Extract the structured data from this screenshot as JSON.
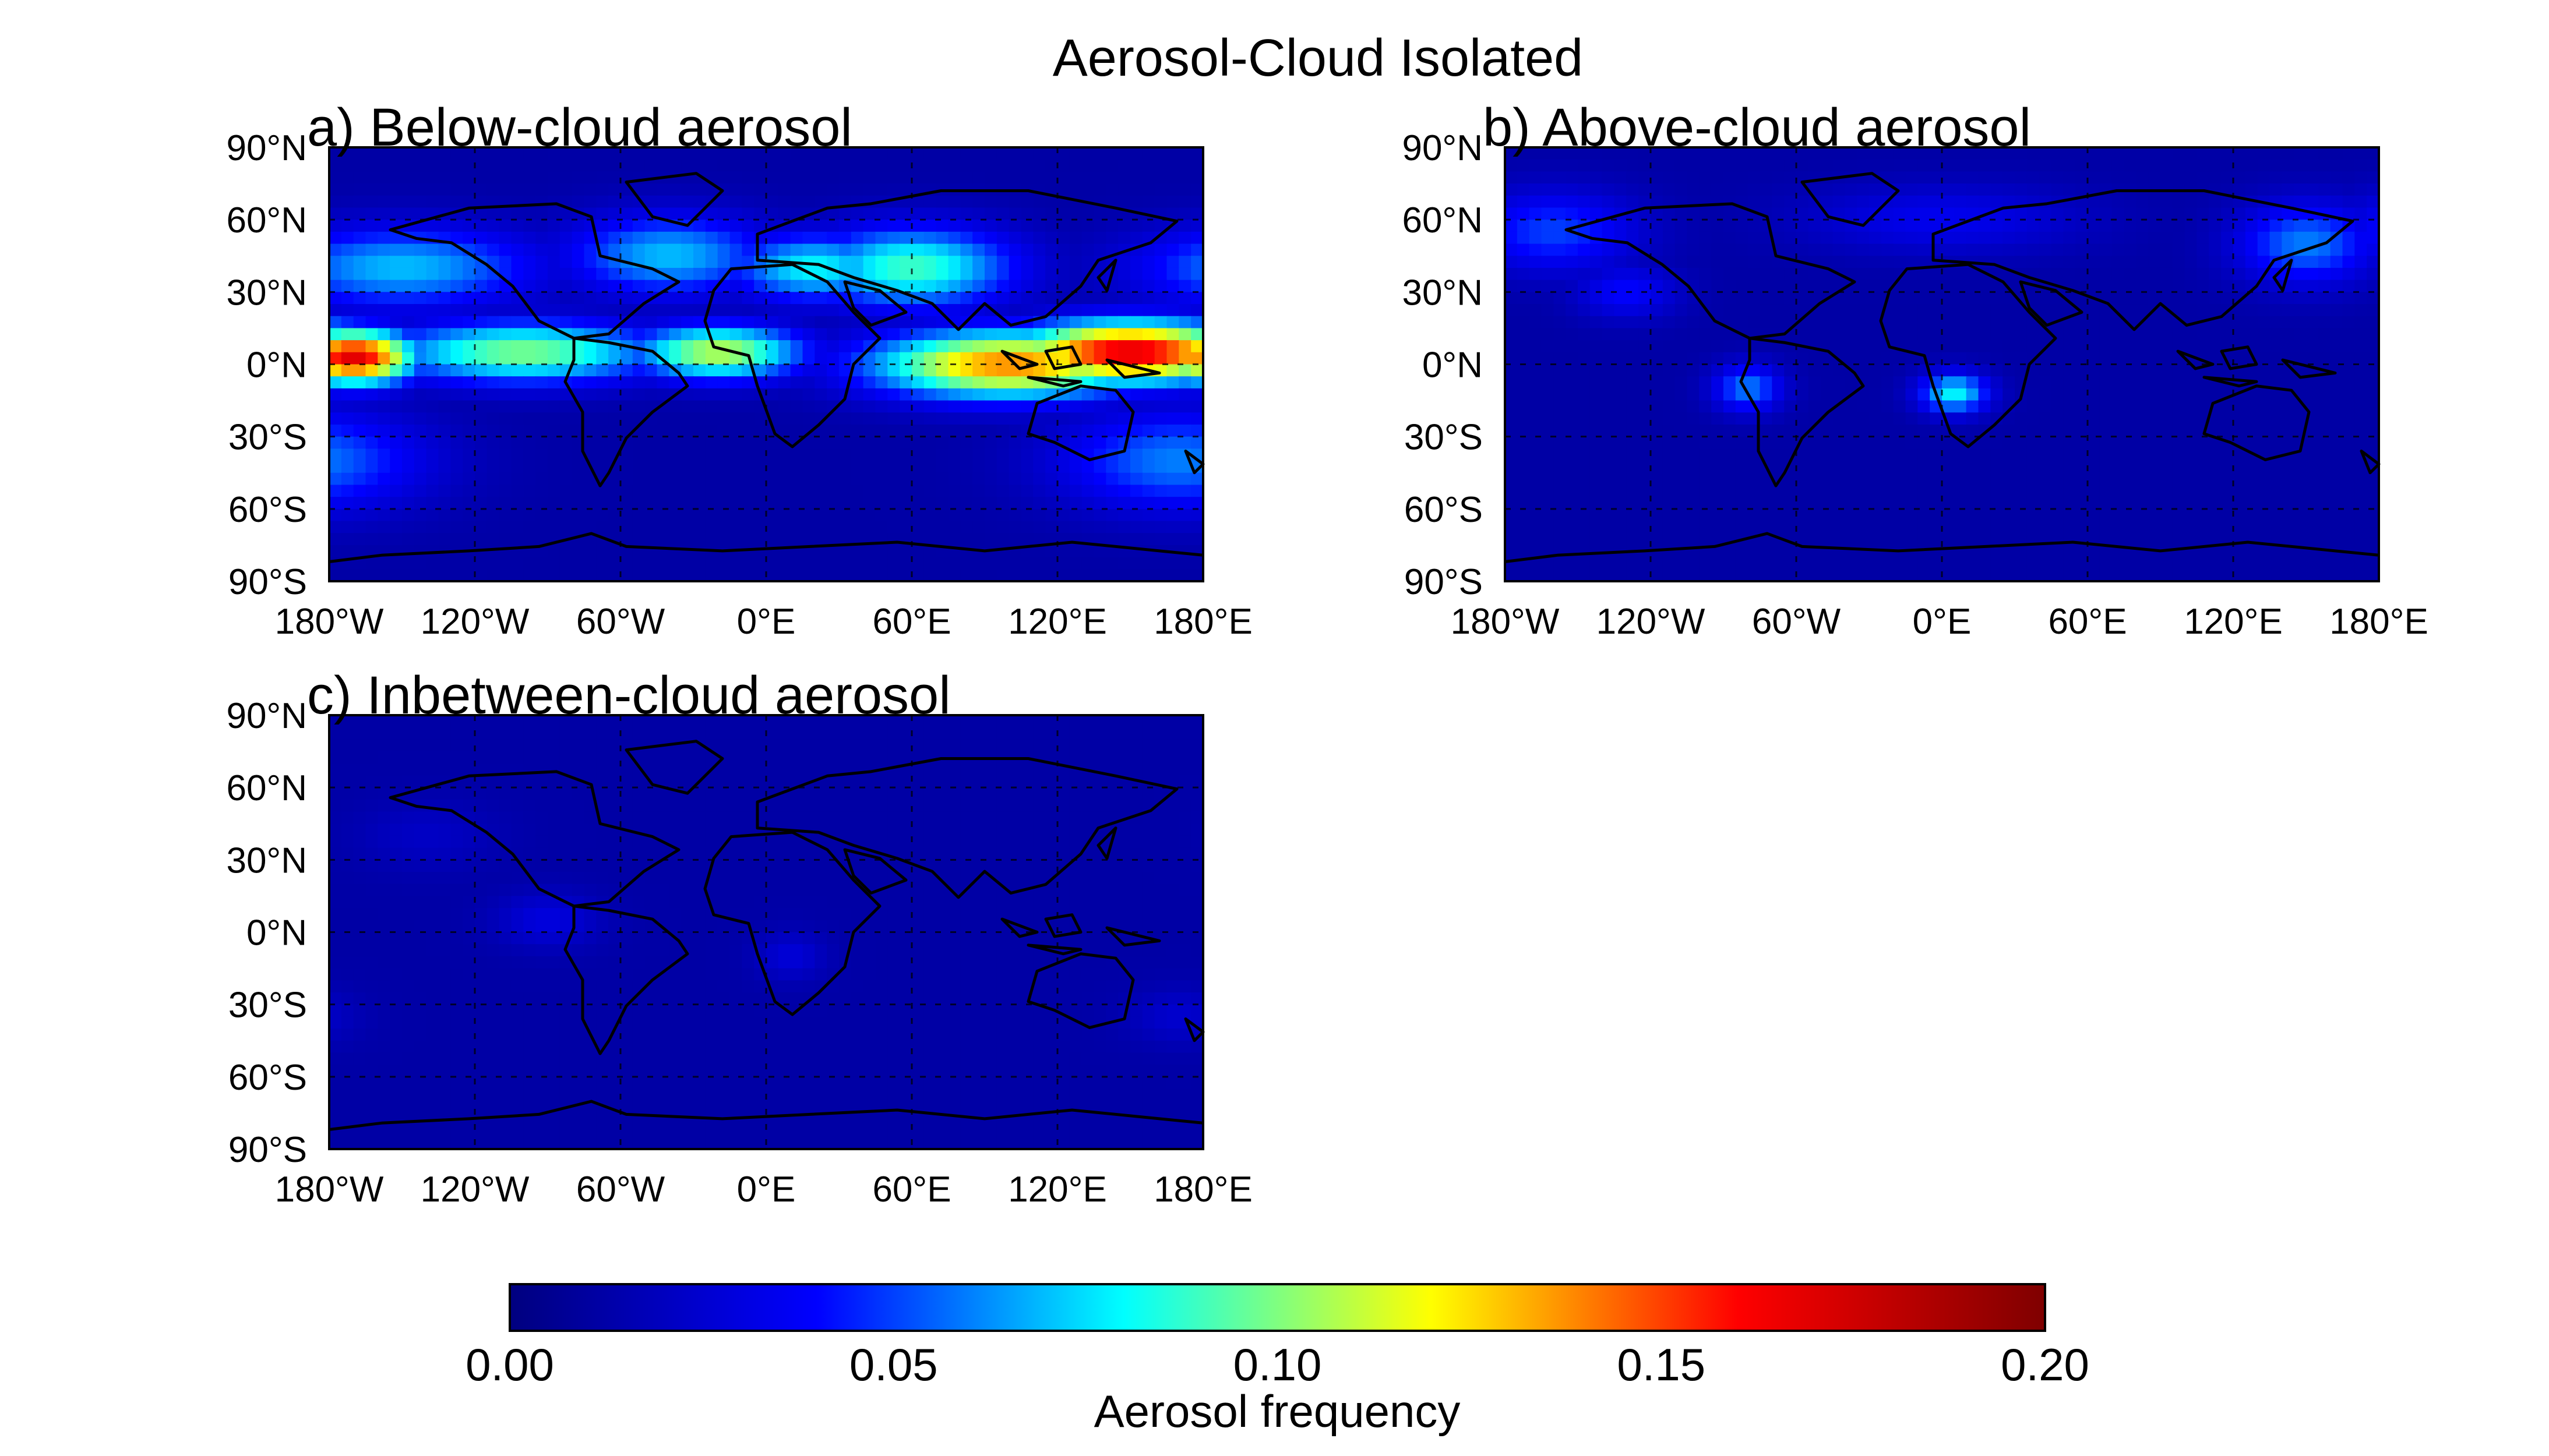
{
  "figure": {
    "title": "Aerosol-Cloud Isolated"
  },
  "chart_data": [
    {
      "type": "heatmap",
      "panel": "a",
      "title": "a) Below-cloud aerosol",
      "x_ticklabels": [
        "180°W",
        "120°W",
        "60°W",
        "0°E",
        "60°E",
        "120°E",
        "180°E"
      ],
      "y_ticklabels": [
        "90°N",
        "60°N",
        "30°N",
        "0°N",
        "30°S",
        "60°S",
        "90°S"
      ],
      "xlim": [
        -180,
        180
      ],
      "ylim": [
        -90,
        90
      ],
      "grid": true,
      "features": [
        {
          "lon": -170,
          "lat": 3,
          "value": 0.17,
          "spread_lon": 18,
          "spread_lat": 8
        },
        {
          "lon": 150,
          "lat": 5,
          "value": 0.17,
          "spread_lon": 35,
          "spread_lat": 9
        },
        {
          "lon": 100,
          "lat": 0,
          "value": 0.14,
          "spread_lon": 40,
          "spread_lat": 10
        },
        {
          "lon": -100,
          "lat": 5,
          "value": 0.1,
          "spread_lon": 40,
          "spread_lat": 9
        },
        {
          "lon": -20,
          "lat": 5,
          "value": 0.11,
          "spread_lon": 25,
          "spread_lat": 8
        },
        {
          "lon": 60,
          "lat": 40,
          "value": 0.09,
          "spread_lon": 30,
          "spread_lat": 12
        },
        {
          "lon": 20,
          "lat": 40,
          "value": 0.08,
          "spread_lon": 25,
          "spread_lat": 10
        },
        {
          "lon": -150,
          "lat": 40,
          "value": 0.07,
          "spread_lon": 40,
          "spread_lat": 12
        },
        {
          "lon": -40,
          "lat": 45,
          "value": 0.07,
          "spread_lon": 30,
          "spread_lat": 12
        },
        {
          "lon": 170,
          "lat": -40,
          "value": 0.06,
          "spread_lon": 35,
          "spread_lat": 15
        }
      ]
    },
    {
      "type": "heatmap",
      "panel": "b",
      "title": "b) Above-cloud aerosol",
      "x_ticklabels": [
        "180°W",
        "120°W",
        "60°W",
        "0°E",
        "60°E",
        "120°E",
        "180°E"
      ],
      "y_ticklabels": [
        "90°N",
        "60°N",
        "30°N",
        "0°N",
        "30°S",
        "60°S",
        "90°S"
      ],
      "xlim": [
        -180,
        180
      ],
      "ylim": [
        -90,
        90
      ],
      "grid": true,
      "features": [
        {
          "lon": 5,
          "lat": -12,
          "value": 0.08,
          "spread_lon": 10,
          "spread_lat": 6
        },
        {
          "lon": -80,
          "lat": -10,
          "value": 0.06,
          "spread_lon": 10,
          "spread_lat": 7
        },
        {
          "lon": 150,
          "lat": 50,
          "value": 0.06,
          "spread_lon": 20,
          "spread_lat": 12
        },
        {
          "lon": -160,
          "lat": 55,
          "value": 0.05,
          "spread_lon": 25,
          "spread_lat": 12
        },
        {
          "lon": -130,
          "lat": 30,
          "value": 0.04,
          "spread_lon": 15,
          "spread_lat": 8
        },
        {
          "lon": 0,
          "lat": 60,
          "value": 0.035,
          "spread_lon": 40,
          "spread_lat": 10
        }
      ]
    },
    {
      "type": "heatmap",
      "panel": "c",
      "title": "c) Inbetween-cloud aerosol",
      "x_ticklabels": [
        "180°W",
        "120°W",
        "60°W",
        "0°E",
        "60°E",
        "120°E",
        "180°E"
      ],
      "y_ticklabels": [
        "90°N",
        "60°N",
        "30°N",
        "0°N",
        "30°S",
        "60°S",
        "90°S"
      ],
      "xlim": [
        -180,
        180
      ],
      "ylim": [
        -90,
        90
      ],
      "grid": true,
      "features": [
        {
          "lon": -90,
          "lat": 5,
          "value": 0.03,
          "spread_lon": 15,
          "spread_lat": 8
        },
        {
          "lon": 10,
          "lat": -10,
          "value": 0.028,
          "spread_lon": 10,
          "spread_lat": 7
        },
        {
          "lon": 170,
          "lat": -35,
          "value": 0.025,
          "spread_lon": 15,
          "spread_lat": 8
        },
        {
          "lon": -140,
          "lat": 40,
          "value": 0.022,
          "spread_lon": 20,
          "spread_lat": 10
        }
      ]
    }
  ],
  "colorbar": {
    "label": "Aerosol frequency",
    "range": [
      0.0,
      0.2
    ],
    "ticks": [
      0.0,
      0.05,
      0.1,
      0.15,
      0.2
    ],
    "ticklabels": [
      "0.00",
      "0.05",
      "0.10",
      "0.15",
      "0.20"
    ],
    "colormap": "jet",
    "colormap_stops": [
      "#00007f",
      "#0000ff",
      "#00ffff",
      "#ffff00",
      "#ff0000",
      "#7f0000"
    ]
  }
}
